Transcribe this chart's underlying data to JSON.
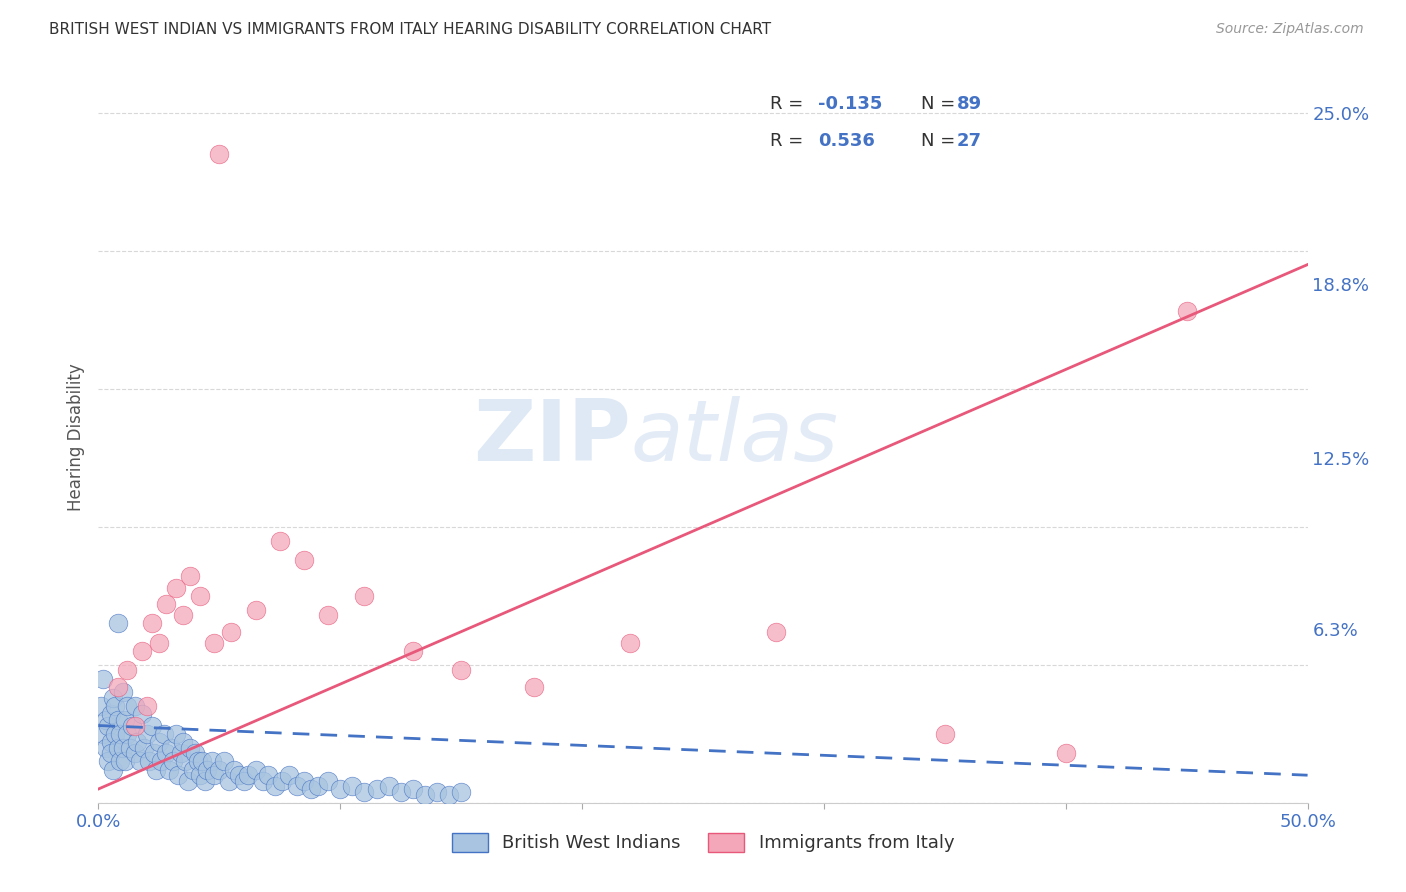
{
  "title": "BRITISH WEST INDIAN VS IMMIGRANTS FROM ITALY HEARING DISABILITY CORRELATION CHART",
  "source": "Source: ZipAtlas.com",
  "xlabel": "",
  "ylabel": "Hearing Disability",
  "xlim": [
    0.0,
    0.5
  ],
  "ylim": [
    0.0,
    0.265
  ],
  "right_ytick_labels": [
    "25.0%",
    "18.8%",
    "12.5%",
    "6.3%"
  ],
  "right_ytick_values": [
    0.25,
    0.188,
    0.125,
    0.063
  ],
  "color_blue": "#a8c4e0",
  "color_pink": "#f4a7b9",
  "color_blue_line": "#4472c4",
  "color_pink_line": "#e8587a",
  "color_text_blue": "#4472c4",
  "background_color": "#ffffff",
  "grid_color": "#d8d8d8",
  "watermark_zip": "ZIP",
  "watermark_atlas": "atlas",
  "blue_x": [
    0.001,
    0.002,
    0.002,
    0.003,
    0.003,
    0.004,
    0.004,
    0.005,
    0.005,
    0.005,
    0.006,
    0.006,
    0.007,
    0.007,
    0.008,
    0.008,
    0.009,
    0.009,
    0.01,
    0.01,
    0.011,
    0.011,
    0.012,
    0.012,
    0.013,
    0.014,
    0.015,
    0.015,
    0.016,
    0.017,
    0.018,
    0.019,
    0.02,
    0.021,
    0.022,
    0.023,
    0.024,
    0.025,
    0.026,
    0.027,
    0.028,
    0.029,
    0.03,
    0.031,
    0.032,
    0.033,
    0.034,
    0.035,
    0.036,
    0.037,
    0.038,
    0.039,
    0.04,
    0.041,
    0.042,
    0.043,
    0.044,
    0.045,
    0.047,
    0.048,
    0.05,
    0.052,
    0.054,
    0.056,
    0.058,
    0.06,
    0.062,
    0.065,
    0.068,
    0.07,
    0.073,
    0.076,
    0.079,
    0.082,
    0.085,
    0.088,
    0.091,
    0.095,
    0.1,
    0.105,
    0.11,
    0.115,
    0.12,
    0.125,
    0.13,
    0.135,
    0.14,
    0.145,
    0.15
  ],
  "blue_y": [
    0.035,
    0.025,
    0.045,
    0.02,
    0.03,
    0.015,
    0.028,
    0.022,
    0.032,
    0.018,
    0.038,
    0.012,
    0.025,
    0.035,
    0.02,
    0.03,
    0.015,
    0.025,
    0.04,
    0.02,
    0.03,
    0.015,
    0.035,
    0.025,
    0.02,
    0.028,
    0.018,
    0.035,
    0.022,
    0.015,
    0.032,
    0.02,
    0.025,
    0.015,
    0.028,
    0.018,
    0.012,
    0.022,
    0.015,
    0.025,
    0.018,
    0.012,
    0.02,
    0.015,
    0.025,
    0.01,
    0.018,
    0.022,
    0.015,
    0.008,
    0.02,
    0.012,
    0.018,
    0.015,
    0.01,
    0.015,
    0.008,
    0.012,
    0.015,
    0.01,
    0.012,
    0.015,
    0.008,
    0.012,
    0.01,
    0.008,
    0.01,
    0.012,
    0.008,
    0.01,
    0.006,
    0.008,
    0.01,
    0.006,
    0.008,
    0.005,
    0.006,
    0.008,
    0.005,
    0.006,
    0.004,
    0.005,
    0.006,
    0.004,
    0.005,
    0.003,
    0.004,
    0.003,
    0.004
  ],
  "blue_outlier_x": [
    0.008
  ],
  "blue_outlier_y": [
    0.065
  ],
  "pink_x": [
    0.008,
    0.012,
    0.018,
    0.022,
    0.025,
    0.028,
    0.032,
    0.035,
    0.038,
    0.042,
    0.048,
    0.055,
    0.065,
    0.075,
    0.085,
    0.095,
    0.11,
    0.13,
    0.15,
    0.18,
    0.22,
    0.28,
    0.35,
    0.4,
    0.45,
    0.02,
    0.015
  ],
  "pink_y": [
    0.042,
    0.048,
    0.055,
    0.065,
    0.058,
    0.072,
    0.078,
    0.068,
    0.082,
    0.075,
    0.058,
    0.062,
    0.07,
    0.095,
    0.088,
    0.068,
    0.075,
    0.055,
    0.048,
    0.042,
    0.058,
    0.062,
    0.025,
    0.018,
    0.178,
    0.035,
    0.028
  ],
  "pink_outlier_x": [
    0.05
  ],
  "pink_outlier_y": [
    0.235
  ],
  "blue_line_x": [
    0.0,
    0.5
  ],
  "blue_line_y": [
    0.028,
    0.01
  ],
  "pink_line_x": [
    0.0,
    0.5
  ],
  "pink_line_y": [
    0.005,
    0.195
  ]
}
